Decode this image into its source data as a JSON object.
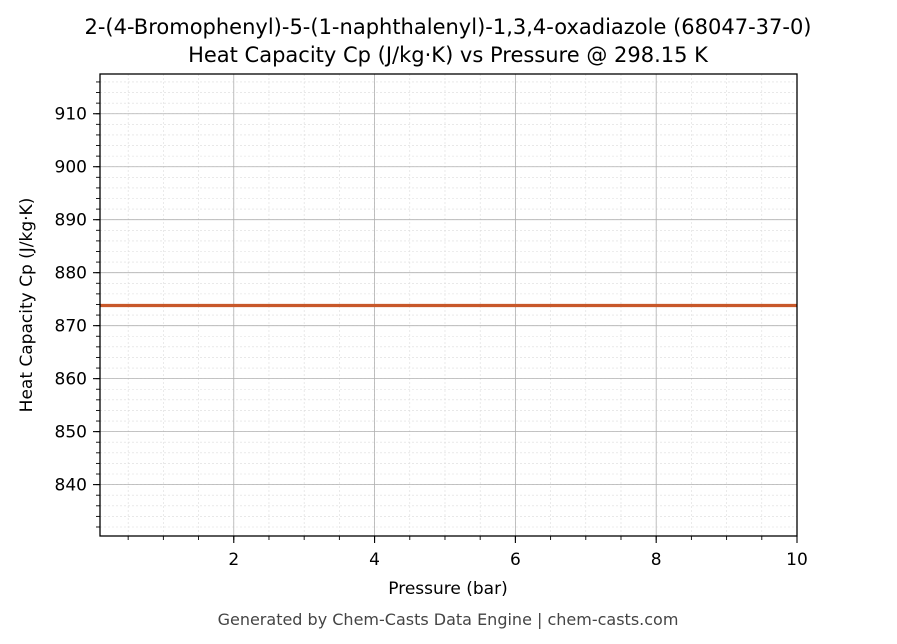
{
  "chart_data": {
    "type": "line",
    "title": "2-(4-Bromophenyl)-5-(1-naphthalenyl)-1,3,4-oxadiazole (68047-37-0)",
    "subtitle": "Heat Capacity Cp (J/kg·K) vs Pressure @ 298.15 K",
    "xlabel": "Pressure (bar)",
    "ylabel": "Heat Capacity Cp (J/kg·K)",
    "xlim": [
      0.1,
      10
    ],
    "ylim": [
      830.3,
      917.5
    ],
    "x_ticks": [
      2,
      4,
      6,
      8,
      10
    ],
    "y_ticks": [
      840,
      850,
      860,
      870,
      880,
      890,
      900,
      910
    ],
    "x_minor_step": 0.5,
    "y_minor_step": 2,
    "grid": true,
    "legend": "none",
    "series": [
      {
        "color": "#c8582a",
        "x": [
          0.1,
          10
        ],
        "y": [
          873.8,
          873.8
        ]
      }
    ]
  },
  "footer": "Generated by Chem-Casts Data Engine | chem-casts.com"
}
